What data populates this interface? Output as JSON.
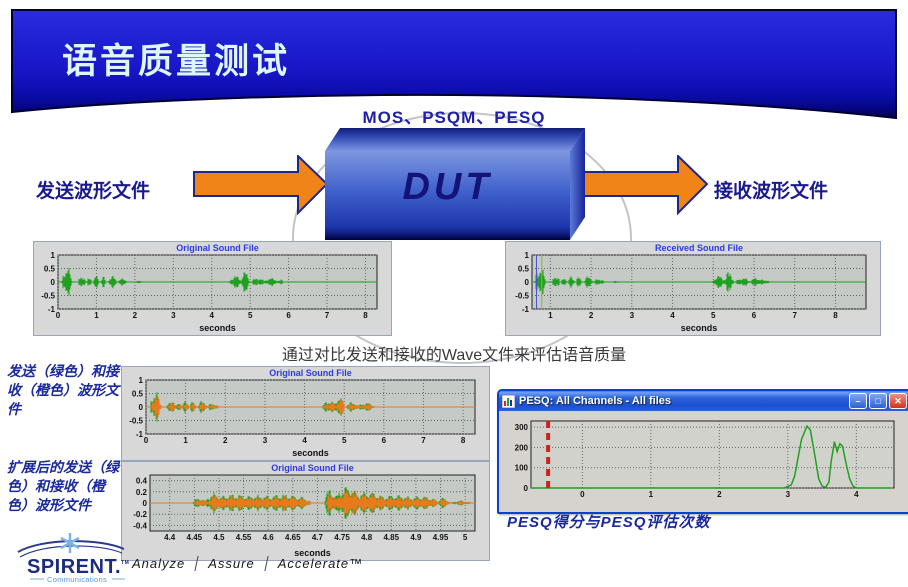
{
  "slide": {
    "title": "语音质量测试",
    "mos_label": "MOS、PSQM、PESQ",
    "dut_label": "DUT",
    "send_label": "发送波形文件",
    "receive_label": "接收波形文件",
    "compare_text": "通过对比发送和接收的Wave文件来评估语音质量",
    "overlay_caption": "发送（绿色）和接收（橙色）波形文件",
    "zoom_caption": "扩展后的发送（绿色）和接收（橙色）波形文件",
    "pesq_caption": "PESQ得分与PESQ评估次数"
  },
  "pesq_window": {
    "title": "PESQ: All Channels - All files",
    "minimize_label": "–",
    "maximize_label": "□",
    "close_label": "✕"
  },
  "footer": {
    "brand": "SPIRENT.",
    "brand_tm": "TM",
    "brand_sub": "Communications",
    "tagline": [
      "Analyze",
      "Assure",
      "Accelerate™"
    ]
  },
  "colors": {
    "header_blue": "#1717c8",
    "header_edge": "#000030",
    "title_text": "#dcf6fa",
    "navy_text": "#1a1a8c",
    "arrow_orange": "#f08418",
    "wave_green": "#1fa01f",
    "wave_orange": "#e87a1e",
    "xp_titlebar": "#2a60dc",
    "close_red": "#d2311e",
    "pesq_marker_red": "#cc2222"
  },
  "chart_data": [
    {
      "type": "waveform",
      "title": "Original Sound File",
      "xlabel": "seconds",
      "xlim": [
        0,
        8.3
      ],
      "ylim": [
        -1,
        1
      ],
      "xticks": [
        0,
        1,
        2,
        3,
        4,
        5,
        6,
        7,
        8
      ],
      "xtick_labels": [
        "0",
        "1",
        "2",
        "3",
        "4",
        "5",
        "6",
        "7",
        "8"
      ],
      "yticks": [
        1,
        0.5,
        0,
        -0.5,
        -1
      ],
      "ytick_labels": [
        "1",
        "0.5",
        "0",
        "-0.5",
        "-1"
      ],
      "grid": true,
      "layout": {
        "margins": {
          "l": 24,
          "r": 12,
          "t": 13,
          "b": 24
        }
      },
      "series": [
        {
          "name": "original",
          "color": "#1fa01f",
          "bursts": [
            {
              "t": 0.16,
              "w": 0.06,
              "a": 0.5
            },
            {
              "t": 0.24,
              "w": 0.13,
              "a": 0.58
            },
            {
              "t": 0.62,
              "w": 0.1,
              "a": 0.3
            },
            {
              "t": 0.82,
              "w": 0.07,
              "a": 0.22
            },
            {
              "t": 1.0,
              "w": 0.08,
              "a": 0.26
            },
            {
              "t": 1.18,
              "w": 0.07,
              "a": 0.22
            },
            {
              "t": 1.42,
              "w": 0.12,
              "a": 0.24
            },
            {
              "t": 1.68,
              "w": 0.14,
              "a": 0.14
            },
            {
              "t": 2.1,
              "w": 0.1,
              "a": 0.05
            },
            {
              "t": 4.62,
              "w": 0.18,
              "a": 0.25
            },
            {
              "t": 4.87,
              "w": 0.12,
              "a": 0.42
            },
            {
              "t": 5.2,
              "w": 0.18,
              "a": 0.18
            },
            {
              "t": 5.55,
              "w": 0.22,
              "a": 0.16
            },
            {
              "t": 5.8,
              "w": 0.08,
              "a": 0.1
            }
          ]
        }
      ]
    },
    {
      "type": "waveform",
      "title": "Received Sound File",
      "xlabel": "seconds",
      "xlim": [
        0.55,
        8.75
      ],
      "ylim": [
        -1,
        1
      ],
      "xticks": [
        1,
        2,
        3,
        4,
        5,
        6,
        7,
        8
      ],
      "xtick_labels": [
        "1",
        "2",
        "3",
        "4",
        "5",
        "6",
        "7",
        "8"
      ],
      "yticks": [
        1,
        0.5,
        0,
        -0.5,
        -1
      ],
      "ytick_labels": [
        "1",
        "0.5",
        "0",
        "-0.5",
        "-1"
      ],
      "grid": true,
      "layout": {
        "margins": {
          "l": 26,
          "r": 12,
          "t": 13,
          "b": 24
        }
      },
      "vlines": [
        {
          "x": 0.66,
          "color": "#4455cc",
          "width": 1
        },
        {
          "x": 0.79,
          "color": "#a8a832",
          "width": 1
        }
      ],
      "series": [
        {
          "name": "received",
          "color": "#1fa01f",
          "bursts": [
            {
              "t": 0.68,
              "w": 0.06,
              "a": 0.5
            },
            {
              "t": 0.76,
              "w": 0.13,
              "a": 0.58
            },
            {
              "t": 1.14,
              "w": 0.1,
              "a": 0.3
            },
            {
              "t": 1.34,
              "w": 0.07,
              "a": 0.22
            },
            {
              "t": 1.52,
              "w": 0.08,
              "a": 0.26
            },
            {
              "t": 1.7,
              "w": 0.07,
              "a": 0.22
            },
            {
              "t": 1.94,
              "w": 0.12,
              "a": 0.24
            },
            {
              "t": 2.2,
              "w": 0.14,
              "a": 0.14
            },
            {
              "t": 2.62,
              "w": 0.1,
              "a": 0.05
            },
            {
              "t": 5.14,
              "w": 0.18,
              "a": 0.25
            },
            {
              "t": 5.39,
              "w": 0.12,
              "a": 0.42
            },
            {
              "t": 5.72,
              "w": 0.18,
              "a": 0.18
            },
            {
              "t": 6.07,
              "w": 0.22,
              "a": 0.16
            },
            {
              "t": 6.32,
              "w": 0.08,
              "a": 0.1
            }
          ]
        }
      ]
    },
    {
      "type": "waveform",
      "title": "Original Sound File",
      "xlabel": "seconds",
      "xlim": [
        0,
        8.3
      ],
      "ylim": [
        -1,
        1
      ],
      "xticks": [
        0,
        1,
        2,
        3,
        4,
        5,
        6,
        7,
        8
      ],
      "xtick_labels": [
        "0",
        "1",
        "2",
        "3",
        "4",
        "5",
        "6",
        "7",
        "8"
      ],
      "yticks": [
        1,
        0.5,
        0,
        -0.5,
        -1
      ],
      "ytick_labels": [
        "1",
        "0.5",
        "0",
        "-0.5",
        "-1"
      ],
      "grid": true,
      "layout": {
        "margins": {
          "l": 24,
          "r": 12,
          "t": 13,
          "b": 24
        }
      },
      "series": [
        {
          "name": "send-green",
          "color": "#1fa01f",
          "bursts": [
            {
              "t": 0.16,
              "w": 0.06,
              "a": 0.52
            },
            {
              "t": 0.24,
              "w": 0.13,
              "a": 0.6
            },
            {
              "t": 0.62,
              "w": 0.1,
              "a": 0.31
            },
            {
              "t": 0.82,
              "w": 0.07,
              "a": 0.23
            },
            {
              "t": 1.0,
              "w": 0.08,
              "a": 0.27
            },
            {
              "t": 1.18,
              "w": 0.07,
              "a": 0.23
            },
            {
              "t": 1.42,
              "w": 0.12,
              "a": 0.25
            },
            {
              "t": 1.68,
              "w": 0.14,
              "a": 0.15
            },
            {
              "t": 4.62,
              "w": 0.18,
              "a": 0.27
            },
            {
              "t": 4.87,
              "w": 0.12,
              "a": 0.44
            },
            {
              "t": 5.2,
              "w": 0.18,
              "a": 0.19
            },
            {
              "t": 5.55,
              "w": 0.22,
              "a": 0.17
            }
          ]
        },
        {
          "name": "receive-orange",
          "color": "#e87a1e",
          "bursts": [
            {
              "t": 0.19,
              "w": 0.06,
              "a": 0.42
            },
            {
              "t": 0.27,
              "w": 0.13,
              "a": 0.48
            },
            {
              "t": 0.65,
              "w": 0.1,
              "a": 0.25
            },
            {
              "t": 0.85,
              "w": 0.07,
              "a": 0.18
            },
            {
              "t": 1.03,
              "w": 0.08,
              "a": 0.22
            },
            {
              "t": 1.21,
              "w": 0.07,
              "a": 0.18
            },
            {
              "t": 1.45,
              "w": 0.12,
              "a": 0.2
            },
            {
              "t": 1.71,
              "w": 0.14,
              "a": 0.12
            },
            {
              "t": 4.65,
              "w": 0.18,
              "a": 0.21
            },
            {
              "t": 4.9,
              "w": 0.12,
              "a": 0.35
            },
            {
              "t": 5.23,
              "w": 0.18,
              "a": 0.15
            },
            {
              "t": 5.58,
              "w": 0.22,
              "a": 0.13
            }
          ]
        }
      ]
    },
    {
      "type": "waveform",
      "title": "Original Sound File",
      "xlabel": "seconds",
      "xlim": [
        4.36,
        5.02
      ],
      "ylim": [
        -0.5,
        0.5
      ],
      "xticks": [
        4.4,
        4.45,
        4.5,
        4.55,
        4.6,
        4.65,
        4.7,
        4.75,
        4.8,
        4.85,
        4.9,
        4.95,
        5
      ],
      "xtick_labels": [
        "4.4",
        "4.45",
        "4.5",
        "4.55",
        "4.6",
        "4.65",
        "4.7",
        "4.75",
        "4.8",
        "4.85",
        "4.9",
        "4.95",
        "5"
      ],
      "yticks": [
        0.4,
        0.2,
        0,
        -0.2,
        -0.4
      ],
      "ytick_labels": [
        "0.4",
        "0.2",
        "0",
        "-0.2",
        "-0.4"
      ],
      "grid": true,
      "layout": {
        "margins": {
          "l": 28,
          "r": 12,
          "t": 13,
          "b": 27
        }
      },
      "series": [
        {
          "name": "send-green",
          "color": "#1fa01f",
          "bursts": [
            {
              "t": 4.46,
              "w": 0.015,
              "a": 0.1
            },
            {
              "t": 4.49,
              "w": 0.02,
              "a": 0.19
            },
            {
              "t": 4.53,
              "w": 0.05,
              "a": 0.17
            },
            {
              "t": 4.58,
              "w": 0.06,
              "a": 0.15
            },
            {
              "t": 4.63,
              "w": 0.05,
              "a": 0.17
            },
            {
              "t": 4.665,
              "w": 0.02,
              "a": 0.12
            },
            {
              "t": 4.725,
              "w": 0.012,
              "a": 0.27
            },
            {
              "t": 4.76,
              "w": 0.03,
              "a": 0.31
            },
            {
              "t": 4.8,
              "w": 0.05,
              "a": 0.21
            },
            {
              "t": 4.86,
              "w": 0.06,
              "a": 0.15
            },
            {
              "t": 4.91,
              "w": 0.04,
              "a": 0.13
            },
            {
              "t": 4.955,
              "w": 0.012,
              "a": 0.1
            },
            {
              "t": 4.99,
              "w": 0.02,
              "a": 0.05
            }
          ]
        },
        {
          "name": "receive-orange",
          "color": "#e87a1e",
          "bursts": [
            {
              "t": 4.464,
              "w": 0.015,
              "a": 0.08
            },
            {
              "t": 4.494,
              "w": 0.02,
              "a": 0.16
            },
            {
              "t": 4.534,
              "w": 0.05,
              "a": 0.14
            },
            {
              "t": 4.584,
              "w": 0.06,
              "a": 0.12
            },
            {
              "t": 4.634,
              "w": 0.05,
              "a": 0.14
            },
            {
              "t": 4.669,
              "w": 0.02,
              "a": 0.1
            },
            {
              "t": 4.729,
              "w": 0.012,
              "a": 0.22
            },
            {
              "t": 4.764,
              "w": 0.03,
              "a": 0.27
            },
            {
              "t": 4.804,
              "w": 0.05,
              "a": 0.18
            },
            {
              "t": 4.864,
              "w": 0.06,
              "a": 0.12
            },
            {
              "t": 4.914,
              "w": 0.04,
              "a": 0.11
            },
            {
              "t": 4.959,
              "w": 0.012,
              "a": 0.08
            },
            {
              "t": 4.994,
              "w": 0.02,
              "a": 0.04
            }
          ]
        }
      ]
    },
    {
      "type": "line",
      "title": "",
      "xlabel": "",
      "xlim": [
        -0.75,
        4.55
      ],
      "ylim": [
        0,
        330
      ],
      "xticks": [
        0,
        1,
        2,
        3,
        4
      ],
      "xtick_labels": [
        "0",
        "1",
        "2",
        "3",
        "4"
      ],
      "yticks": [
        0,
        100,
        200,
        300
      ],
      "ytick_labels": [
        "0",
        "100",
        "200",
        "300"
      ],
      "grid": true,
      "plot_bg": "#d2d2cc",
      "layout": {
        "margins": {
          "l": 30,
          "r": 10,
          "t": 8,
          "b": 17
        }
      },
      "vlines": [
        {
          "x": -0.5,
          "color": "#cc2222",
          "width": 4,
          "dash": "7,5"
        }
      ],
      "series": [
        {
          "name": "pesq-score",
          "color": "#1fa01f",
          "points": [
            [
              -0.75,
              0
            ],
            [
              2.95,
              0
            ],
            [
              3.05,
              15
            ],
            [
              3.1,
              60
            ],
            [
              3.2,
              240
            ],
            [
              3.28,
              305
            ],
            [
              3.33,
              285
            ],
            [
              3.4,
              150
            ],
            [
              3.45,
              45
            ],
            [
              3.5,
              10
            ],
            [
              3.55,
              3
            ],
            [
              3.6,
              28
            ],
            [
              3.63,
              125
            ],
            [
              3.68,
              228
            ],
            [
              3.72,
              180
            ],
            [
              3.76,
              218
            ],
            [
              3.8,
              205
            ],
            [
              3.85,
              120
            ],
            [
              3.9,
              48
            ],
            [
              3.95,
              10
            ],
            [
              4.0,
              0
            ],
            [
              4.5,
              0
            ]
          ]
        }
      ]
    }
  ]
}
